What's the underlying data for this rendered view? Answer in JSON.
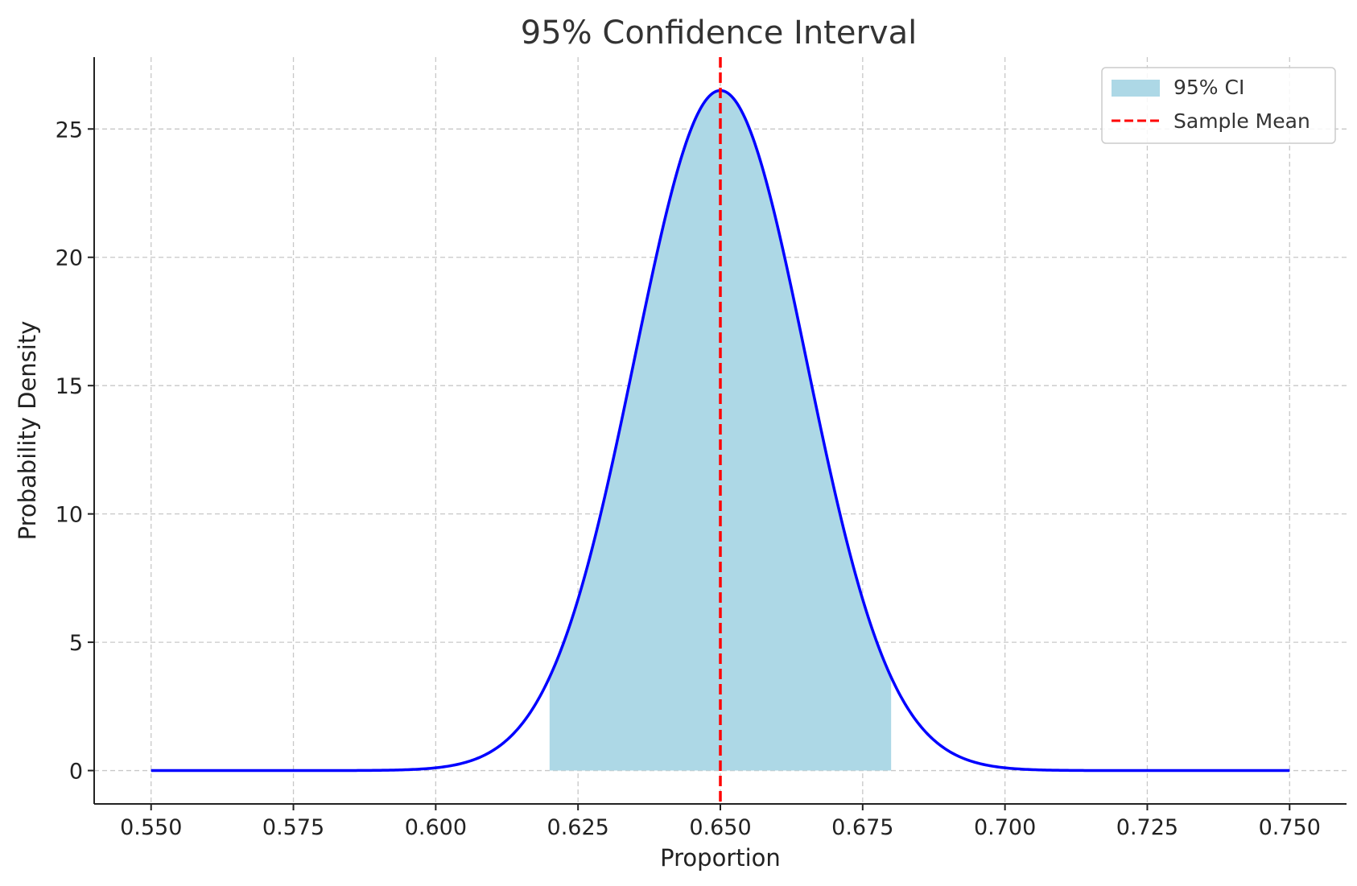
{
  "chart_data": {
    "type": "line",
    "title": "95% Confidence Interval",
    "xlabel": "Proportion",
    "ylabel": "Probability Density",
    "xlim": [
      0.54,
      0.76
    ],
    "ylim": [
      -1.3,
      27.8
    ],
    "x_ticks": [
      0.55,
      0.575,
      0.6,
      0.625,
      0.65,
      0.675,
      0.7,
      0.725,
      0.75
    ],
    "x_tick_labels": [
      "0.550",
      "0.575",
      "0.600",
      "0.625",
      "0.650",
      "0.675",
      "0.700",
      "0.725",
      "0.750"
    ],
    "y_ticks": [
      0,
      5,
      10,
      15,
      20,
      25
    ],
    "y_tick_labels": [
      "0",
      "5",
      "10",
      "15",
      "20",
      "25"
    ],
    "grid": true,
    "legend_position": "top-right",
    "curve": {
      "color": "#0000ff",
      "x": [
        0.55,
        0.56,
        0.57,
        0.58,
        0.59,
        0.595,
        0.6,
        0.605,
        0.61,
        0.615,
        0.62,
        0.625,
        0.63,
        0.635,
        0.64,
        0.645,
        0.65,
        0.655,
        0.66,
        0.665,
        0.67,
        0.675,
        0.68,
        0.685,
        0.69,
        0.695,
        0.7,
        0.71,
        0.72,
        0.73,
        0.74,
        0.75
      ],
      "y": [
        0.0,
        0.0,
        0.0,
        0.0,
        0.03,
        0.07,
        0.22,
        0.55,
        1.3,
        2.6,
        4.0,
        6.6,
        10.8,
        15.6,
        20.3,
        24.0,
        26.5,
        24.0,
        20.3,
        15.6,
        10.8,
        6.6,
        4.0,
        2.6,
        1.3,
        0.55,
        0.22,
        0.03,
        0.0,
        0.0,
        0.0,
        0.0
      ]
    },
    "ci_fill": {
      "name": "95% CI",
      "color": "#add8e6",
      "x_start": 0.62,
      "x_end": 0.68
    },
    "mean_line": {
      "name": "Sample Mean",
      "color": "#ff0000",
      "x": 0.65
    }
  }
}
